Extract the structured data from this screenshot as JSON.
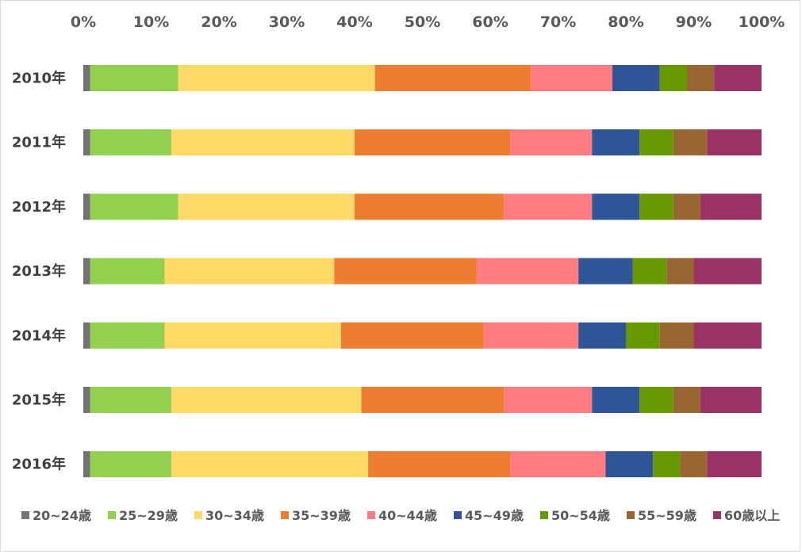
{
  "chart_data": {
    "type": "bar",
    "orientation": "horizontal",
    "stacked": "percent",
    "categories": [
      "2010年",
      "2011年",
      "2012年",
      "2013年",
      "2014年",
      "2015年",
      "2016年"
    ],
    "xlim": [
      0,
      100
    ],
    "xticks": [
      "0%",
      "10%",
      "20%",
      "30%",
      "40%",
      "50%",
      "60%",
      "70%",
      "80%",
      "90%",
      "100%"
    ],
    "x_axis_position": "top",
    "legend_position": "bottom",
    "grid": false,
    "series": [
      {
        "name": "20~24歳",
        "color": "#767171",
        "values": [
          1,
          1,
          1,
          1,
          1,
          1,
          1
        ]
      },
      {
        "name": "25~29歳",
        "color": "#92d050",
        "values": [
          13,
          12,
          13,
          11,
          11,
          12,
          12
        ]
      },
      {
        "name": "30~34歳",
        "color": "#ffd966",
        "values": [
          29,
          27,
          26,
          25,
          26,
          28,
          29
        ]
      },
      {
        "name": "35~39歳",
        "color": "#ed7d31",
        "values": [
          23,
          23,
          22,
          21,
          21,
          21,
          21
        ]
      },
      {
        "name": "40~44歳",
        "color": "#ff7c80",
        "values": [
          12,
          12,
          13,
          15,
          14,
          13,
          14
        ]
      },
      {
        "name": "45~49歳",
        "color": "#2f5597",
        "values": [
          7,
          7,
          7,
          8,
          7,
          7,
          7
        ]
      },
      {
        "name": "50~54歳",
        "color": "#669900",
        "values": [
          4,
          5,
          5,
          5,
          5,
          5,
          4
        ]
      },
      {
        "name": "55~59歳",
        "color": "#996633",
        "values": [
          4,
          5,
          4,
          4,
          5,
          4,
          4
        ]
      },
      {
        "name": "60歳以上",
        "color": "#993366",
        "values": [
          7,
          8,
          9,
          10,
          10,
          9,
          8
        ]
      }
    ]
  }
}
